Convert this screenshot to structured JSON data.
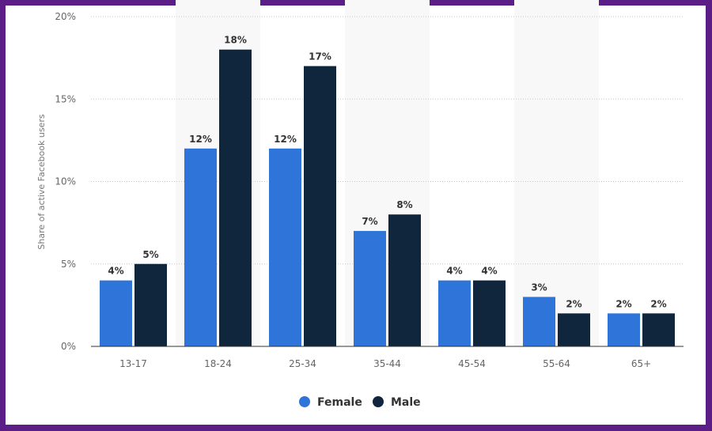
{
  "chart_data": {
    "type": "bar",
    "ylabel": "Share of active Facebook users",
    "xlabel": "",
    "ylim": [
      0,
      20
    ],
    "yticks": [
      "0%",
      "5%",
      "10%",
      "15%",
      "20%"
    ],
    "categories": [
      "13-17",
      "18-24",
      "25-34",
      "35-44",
      "45-54",
      "55-64",
      "65+"
    ],
    "series": [
      {
        "name": "Female",
        "color": "#2f75d9",
        "values": [
          4,
          12,
          12,
          7,
          4,
          3,
          2
        ],
        "labels": [
          "4%",
          "12%",
          "12%",
          "7%",
          "4%",
          "3%",
          "2%"
        ]
      },
      {
        "name": "Male",
        "color": "#10263d",
        "values": [
          5,
          18,
          17,
          8,
          4,
          2,
          2
        ],
        "labels": [
          "5%",
          "18%",
          "17%",
          "8%",
          "4%",
          "2%",
          "2%"
        ]
      }
    ],
    "grid": true,
    "legend_position": "bottom-center"
  }
}
